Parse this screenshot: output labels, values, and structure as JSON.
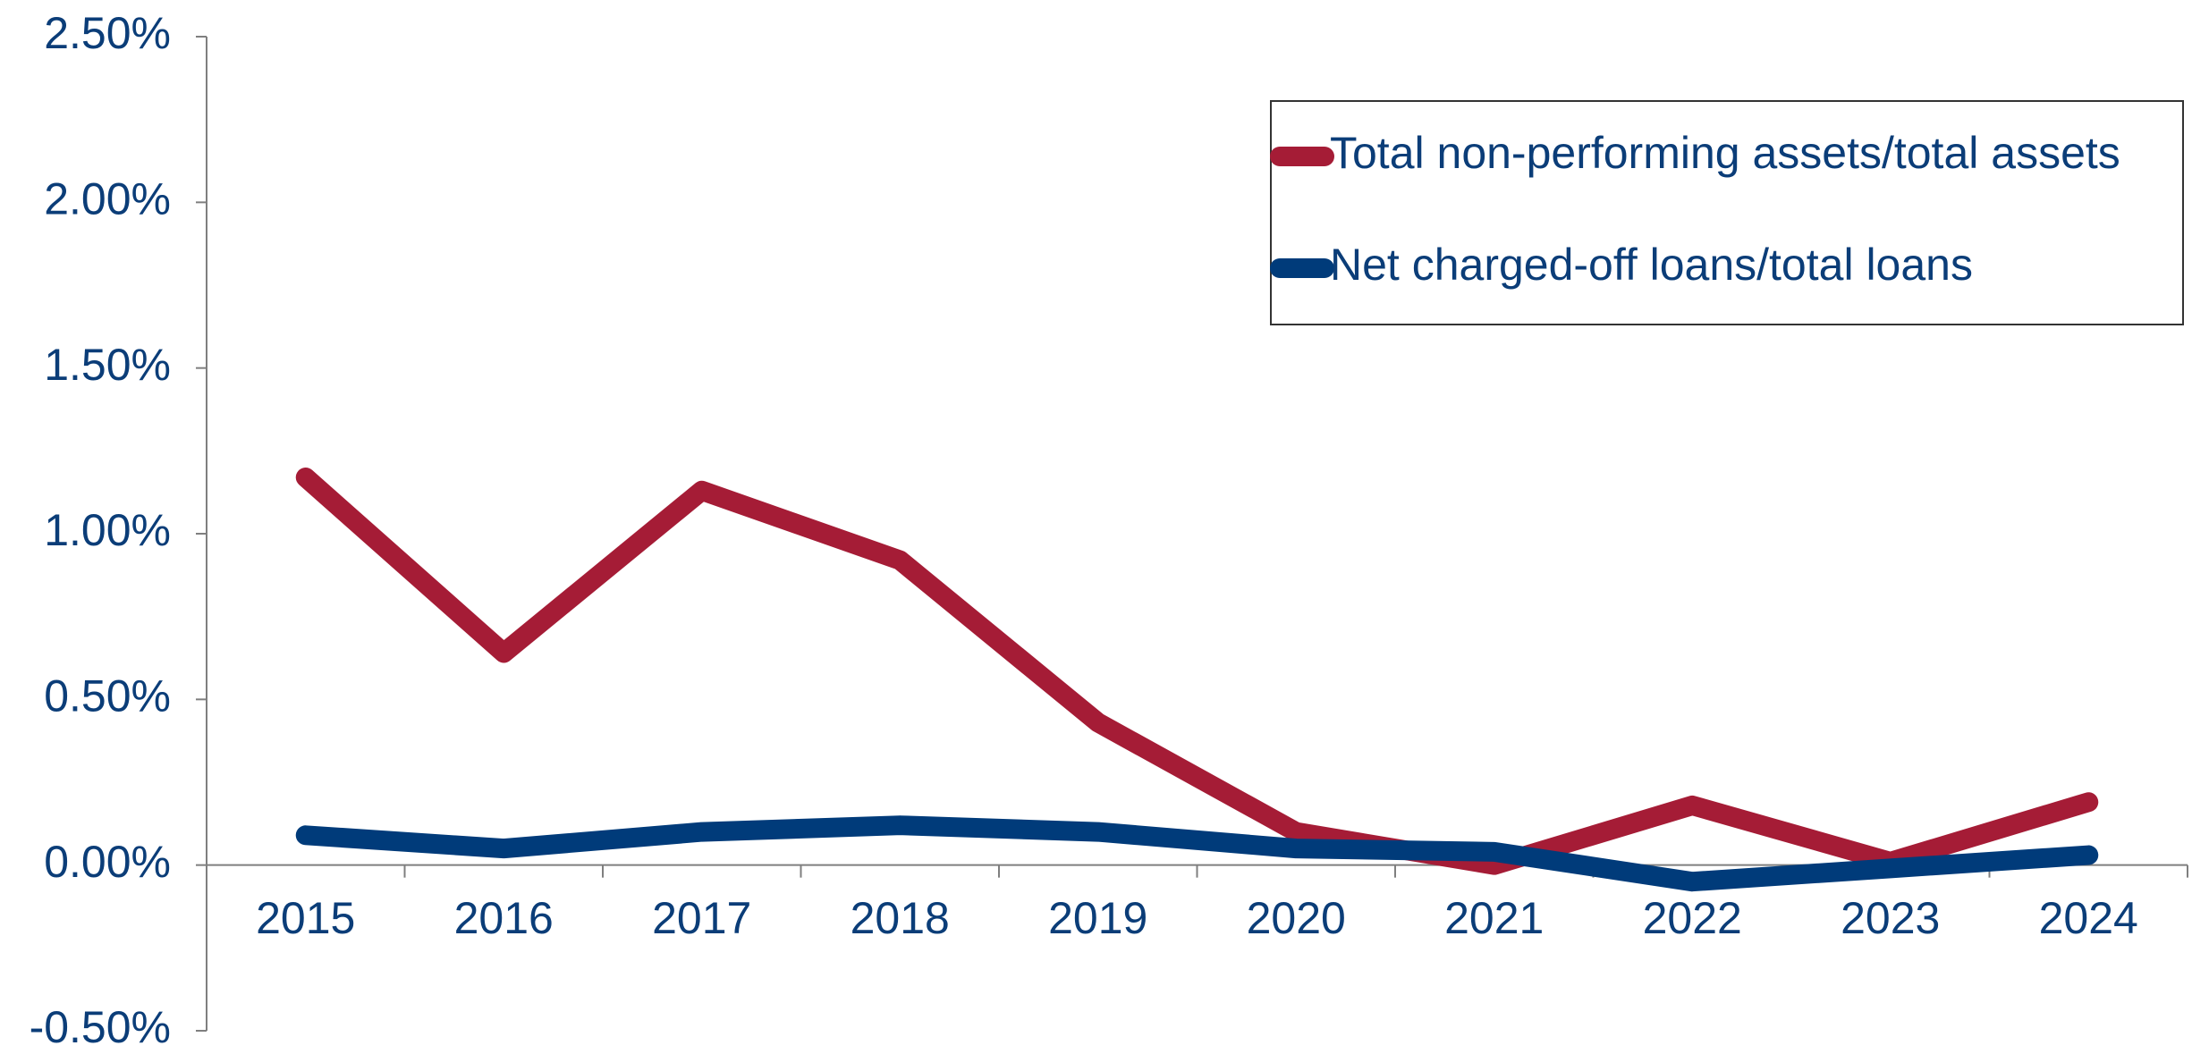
{
  "chart_data": {
    "type": "line",
    "categories": [
      "2015",
      "2016",
      "2017",
      "2018",
      "2019",
      "2020",
      "2021",
      "2022",
      "2023",
      "2024"
    ],
    "series": [
      {
        "name": "Total non-performing assets/total assets",
        "color": "#a51c36",
        "values": [
          1.17,
          0.64,
          1.13,
          0.92,
          0.43,
          0.1,
          0.0,
          0.18,
          0.01,
          0.19
        ]
      },
      {
        "name": "Net charged-off loans/total loans",
        "color": "#003b7a",
        "values": [
          0.09,
          0.05,
          0.1,
          0.12,
          0.1,
          0.05,
          0.04,
          -0.05,
          -0.01,
          0.03
        ]
      }
    ],
    "ylim": [
      -0.5,
      2.5
    ],
    "yticks": [
      {
        "value": -0.5,
        "label": "-0.50%"
      },
      {
        "value": 0,
        "label": "0.00%"
      },
      {
        "value": 0.5,
        "label": "0.50%"
      },
      {
        "value": 1,
        "label": "1.00%"
      },
      {
        "value": 1.5,
        "label": "1.50%"
      },
      {
        "value": 2,
        "label": "2.00%"
      },
      {
        "value": 2.5,
        "label": "2.50%"
      }
    ],
    "legend": "upper right",
    "grid": false
  }
}
